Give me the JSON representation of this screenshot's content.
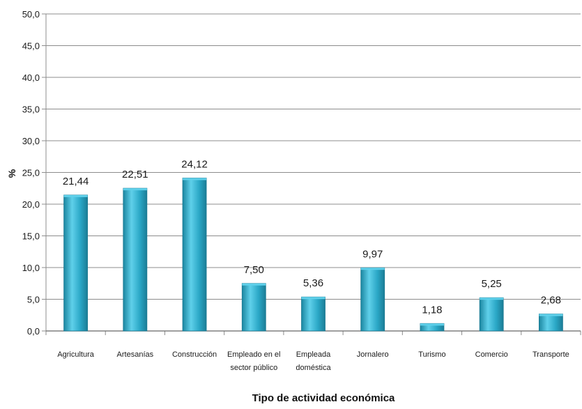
{
  "chart_data": {
    "type": "bar",
    "categories": [
      [
        "Agricultura"
      ],
      [
        "Artesanías"
      ],
      [
        "Construcción"
      ],
      [
        "Empleado en el",
        "sector público"
      ],
      [
        "Empleada",
        "doméstica"
      ],
      [
        "Jornalero"
      ],
      [
        "Turismo"
      ],
      [
        "Comercio"
      ],
      [
        "Transporte"
      ]
    ],
    "values": [
      21.44,
      22.51,
      24.12,
      7.5,
      5.36,
      9.97,
      1.18,
      5.25,
      2.68
    ],
    "data_labels": [
      "21,44",
      "22,51",
      "24,12",
      "7,50",
      "5,36",
      "9,97",
      "1,18",
      "5,25",
      "2,68"
    ],
    "xlabel": "Tipo de actividad económica",
    "ylabel": "%",
    "ylim": [
      0,
      50
    ],
    "yticks": [
      "0,0",
      "5,0",
      "10,0",
      "15,0",
      "20,0",
      "25,0",
      "30,0",
      "35,0",
      "40,0",
      "45,0",
      "50,0"
    ],
    "grid": true,
    "legend": "none",
    "colors": {
      "bar": "#2aa7c6",
      "bar_light": "#5fd0ea",
      "bar_dark": "#1b7d96",
      "grid": "#8c8c8c"
    }
  }
}
